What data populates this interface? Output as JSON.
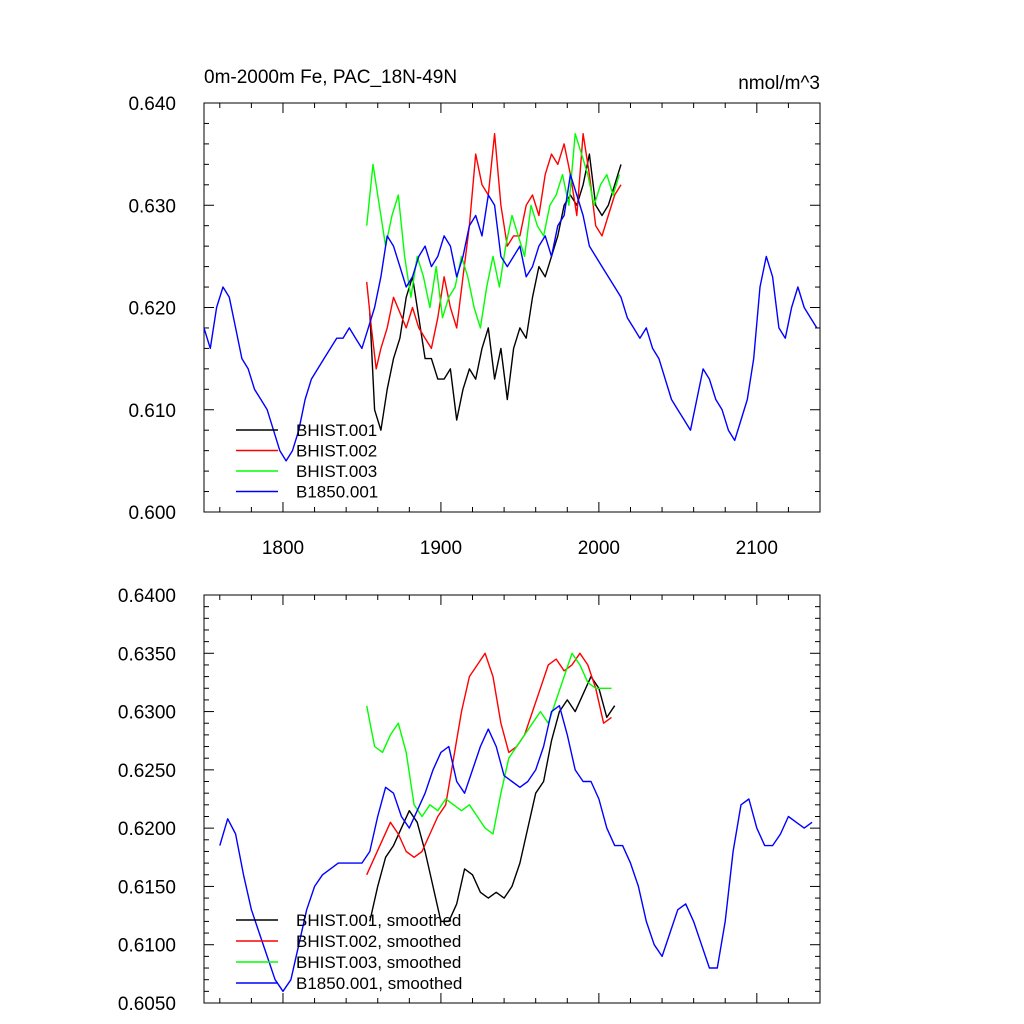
{
  "colors": {
    "black": "#000000",
    "red": "#ff0000",
    "green": "#00ff00",
    "blue": "#0000ff"
  },
  "chart_data": [
    {
      "type": "line",
      "title": "0m-2000m Fe, PAC_18N-49N",
      "units": "nmol/m^3",
      "xlim": [
        1750,
        2140
      ],
      "ylim": [
        0.6,
        0.64
      ],
      "x_ticks": [
        1800,
        1900,
        2000,
        2100
      ],
      "x_tick_labels": [
        "1800",
        "1900",
        "2000",
        "2100"
      ],
      "y_ticks": [
        0.6,
        0.61,
        0.62,
        0.63,
        0.64
      ],
      "y_tick_labels": [
        "0.600",
        "0.610",
        "0.620",
        "0.630",
        "0.640"
      ],
      "grid": false,
      "legend_position": "bottom-left",
      "series": [
        {
          "name": "BHIST.001",
          "color": "#000000",
          "x": [
            1855,
            1858,
            1862,
            1866,
            1870,
            1874,
            1878,
            1882,
            1886,
            1890,
            1894,
            1898,
            1902,
            1906,
            1910,
            1914,
            1918,
            1922,
            1926,
            1930,
            1934,
            1938,
            1942,
            1946,
            1950,
            1954,
            1958,
            1962,
            1966,
            1970,
            1974,
            1978,
            1982,
            1986,
            1990,
            1994,
            1998,
            2002,
            2006,
            2010,
            2014
          ],
          "y": [
            0.6195,
            0.61,
            0.608,
            0.612,
            0.615,
            0.617,
            0.621,
            0.623,
            0.619,
            0.615,
            0.615,
            0.613,
            0.613,
            0.614,
            0.609,
            0.612,
            0.614,
            0.613,
            0.616,
            0.618,
            0.613,
            0.616,
            0.611,
            0.616,
            0.618,
            0.617,
            0.621,
            0.624,
            0.623,
            0.625,
            0.627,
            0.63,
            0.631,
            0.63,
            0.632,
            0.635,
            0.63,
            0.629,
            0.63,
            0.632,
            0.634
          ]
        },
        {
          "name": "BHIST.002",
          "color": "#ff0000",
          "x": [
            1853,
            1856,
            1859,
            1862,
            1866,
            1870,
            1874,
            1878,
            1882,
            1886,
            1890,
            1894,
            1898,
            1902,
            1906,
            1910,
            1914,
            1918,
            1922,
            1926,
            1930,
            1934,
            1938,
            1942,
            1946,
            1950,
            1954,
            1958,
            1962,
            1966,
            1970,
            1974,
            1978,
            1982,
            1986,
            1990,
            1994,
            1998,
            2002,
            2006,
            2010,
            2014
          ],
          "y": [
            0.6225,
            0.618,
            0.614,
            0.616,
            0.618,
            0.621,
            0.6195,
            0.618,
            0.62,
            0.618,
            0.617,
            0.616,
            0.619,
            0.623,
            0.62,
            0.618,
            0.623,
            0.628,
            0.635,
            0.632,
            0.631,
            0.637,
            0.63,
            0.626,
            0.627,
            0.627,
            0.63,
            0.631,
            0.629,
            0.633,
            0.635,
            0.634,
            0.636,
            0.633,
            0.629,
            0.637,
            0.633,
            0.628,
            0.627,
            0.629,
            0.631,
            0.632
          ]
        },
        {
          "name": "BHIST.003",
          "color": "#00ff00",
          "x": [
            1853,
            1857,
            1861,
            1865,
            1869,
            1873,
            1877,
            1881,
            1885,
            1889,
            1893,
            1897,
            1901,
            1905,
            1909,
            1913,
            1917,
            1921,
            1925,
            1929,
            1933,
            1937,
            1941,
            1945,
            1949,
            1953,
            1957,
            1961,
            1965,
            1969,
            1973,
            1977,
            1981,
            1985,
            1989,
            1993,
            1997,
            2001,
            2005,
            2009,
            2013
          ],
          "y": [
            0.628,
            0.634,
            0.63,
            0.626,
            0.629,
            0.631,
            0.625,
            0.621,
            0.625,
            0.623,
            0.62,
            0.624,
            0.619,
            0.621,
            0.622,
            0.625,
            0.623,
            0.62,
            0.618,
            0.622,
            0.625,
            0.622,
            0.626,
            0.629,
            0.627,
            0.625,
            0.63,
            0.628,
            0.627,
            0.63,
            0.631,
            0.633,
            0.63,
            0.637,
            0.635,
            0.633,
            0.63,
            0.632,
            0.633,
            0.631,
            0.633
          ]
        },
        {
          "name": "B1850.001",
          "color": "#0000ff",
          "x": [
            1750,
            1754,
            1758,
            1762,
            1766,
            1770,
            1774,
            1778,
            1782,
            1786,
            1790,
            1794,
            1798,
            1802,
            1806,
            1810,
            1814,
            1818,
            1822,
            1826,
            1830,
            1834,
            1838,
            1842,
            1846,
            1850,
            1854,
            1858,
            1862,
            1866,
            1870,
            1874,
            1878,
            1882,
            1886,
            1890,
            1894,
            1898,
            1902,
            1906,
            1910,
            1914,
            1918,
            1922,
            1926,
            1930,
            1934,
            1938,
            1942,
            1946,
            1950,
            1954,
            1958,
            1962,
            1966,
            1970,
            1974,
            1978,
            1982,
            1986,
            1990,
            1994,
            1998,
            2002,
            2006,
            2010,
            2014,
            2018,
            2022,
            2026,
            2030,
            2034,
            2038,
            2042,
            2046,
            2050,
            2054,
            2058,
            2062,
            2066,
            2070,
            2074,
            2078,
            2082,
            2086,
            2090,
            2094,
            2098,
            2102,
            2106,
            2110,
            2114,
            2118,
            2122,
            2126,
            2130,
            2134,
            2138
          ],
          "y": [
            0.618,
            0.616,
            0.62,
            0.622,
            0.621,
            0.618,
            0.615,
            0.614,
            0.612,
            0.611,
            0.61,
            0.608,
            0.606,
            0.605,
            0.606,
            0.608,
            0.611,
            0.613,
            0.614,
            0.615,
            0.616,
            0.617,
            0.617,
            0.618,
            0.617,
            0.616,
            0.618,
            0.62,
            0.623,
            0.627,
            0.626,
            0.624,
            0.622,
            0.623,
            0.625,
            0.626,
            0.624,
            0.625,
            0.627,
            0.626,
            0.623,
            0.625,
            0.628,
            0.629,
            0.627,
            0.631,
            0.63,
            0.625,
            0.624,
            0.625,
            0.626,
            0.623,
            0.624,
            0.626,
            0.627,
            0.625,
            0.628,
            0.629,
            0.633,
            0.631,
            0.629,
            0.626,
            0.625,
            0.624,
            0.623,
            0.622,
            0.621,
            0.619,
            0.618,
            0.617,
            0.618,
            0.616,
            0.615,
            0.613,
            0.611,
            0.61,
            0.609,
            0.608,
            0.611,
            0.614,
            0.613,
            0.611,
            0.61,
            0.608,
            0.607,
            0.609,
            0.611,
            0.615,
            0.622,
            0.625,
            0.623,
            0.618,
            0.617,
            0.62,
            0.622,
            0.62,
            0.619,
            0.618
          ]
        }
      ]
    },
    {
      "type": "line",
      "title": "",
      "xlim": [
        1750,
        2140
      ],
      "ylim": [
        0.605,
        0.64
      ],
      "x_ticks": [
        1800,
        1900,
        2000,
        2100
      ],
      "y_ticks": [
        0.605,
        0.61,
        0.615,
        0.62,
        0.625,
        0.63,
        0.635,
        0.64
      ],
      "y_tick_labels": [
        "0.6050",
        "0.6100",
        "0.6150",
        "0.6200",
        "0.6250",
        "0.6300",
        "0.6350",
        "0.6400"
      ],
      "grid": false,
      "legend_position": "bottom-left",
      "series": [
        {
          "name": "BHIST.001, smoothed",
          "color": "#000000",
          "x": [
            1855,
            1860,
            1865,
            1870,
            1875,
            1880,
            1885,
            1890,
            1895,
            1900,
            1905,
            1910,
            1915,
            1920,
            1925,
            1930,
            1935,
            1940,
            1945,
            1950,
            1955,
            1960,
            1965,
            1970,
            1975,
            1980,
            1985,
            1990,
            1995,
            2000,
            2005,
            2010
          ],
          "y": [
            0.612,
            0.615,
            0.6175,
            0.6185,
            0.62,
            0.6215,
            0.6205,
            0.618,
            0.615,
            0.612,
            0.612,
            0.6135,
            0.6165,
            0.616,
            0.6145,
            0.614,
            0.6145,
            0.614,
            0.615,
            0.617,
            0.62,
            0.623,
            0.624,
            0.6275,
            0.63,
            0.631,
            0.63,
            0.6315,
            0.633,
            0.632,
            0.6295,
            0.6305
          ]
        },
        {
          "name": "BHIST.002, smoothed",
          "color": "#ff0000",
          "x": [
            1853,
            1858,
            1863,
            1868,
            1873,
            1878,
            1883,
            1888,
            1893,
            1898,
            1903,
            1908,
            1913,
            1918,
            1923,
            1928,
            1933,
            1938,
            1943,
            1948,
            1953,
            1958,
            1963,
            1968,
            1973,
            1978,
            1983,
            1988,
            1993,
            1998,
            2003,
            2008
          ],
          "y": [
            0.616,
            0.6175,
            0.619,
            0.6205,
            0.6195,
            0.618,
            0.6175,
            0.618,
            0.6195,
            0.621,
            0.622,
            0.626,
            0.63,
            0.633,
            0.634,
            0.635,
            0.633,
            0.629,
            0.6265,
            0.627,
            0.628,
            0.63,
            0.632,
            0.634,
            0.6345,
            0.6335,
            0.634,
            0.635,
            0.634,
            0.632,
            0.629,
            0.6295
          ]
        },
        {
          "name": "BHIST.003, smoothed",
          "color": "#00ff00",
          "x": [
            1853,
            1858,
            1863,
            1868,
            1873,
            1878,
            1883,
            1888,
            1893,
            1898,
            1903,
            1908,
            1913,
            1918,
            1923,
            1928,
            1933,
            1938,
            1943,
            1948,
            1953,
            1958,
            1963,
            1968,
            1973,
            1978,
            1983,
            1988,
            1993,
            1998,
            2003,
            2008
          ],
          "y": [
            0.6305,
            0.627,
            0.6265,
            0.628,
            0.629,
            0.6265,
            0.622,
            0.621,
            0.622,
            0.6215,
            0.6225,
            0.622,
            0.6215,
            0.622,
            0.621,
            0.62,
            0.6195,
            0.623,
            0.626,
            0.627,
            0.628,
            0.629,
            0.63,
            0.629,
            0.631,
            0.633,
            0.635,
            0.634,
            0.6325,
            0.632,
            0.632,
            0.632
          ]
        },
        {
          "name": "B1850.001, smoothed",
          "color": "#0000ff",
          "x": [
            1760,
            1765,
            1770,
            1775,
            1780,
            1785,
            1790,
            1795,
            1800,
            1805,
            1810,
            1815,
            1820,
            1825,
            1830,
            1835,
            1840,
            1845,
            1850,
            1855,
            1860,
            1865,
            1870,
            1875,
            1880,
            1885,
            1890,
            1895,
            1900,
            1905,
            1910,
            1915,
            1920,
            1925,
            1930,
            1935,
            1940,
            1945,
            1950,
            1955,
            1960,
            1965,
            1970,
            1975,
            1980,
            1985,
            1990,
            1995,
            2000,
            2005,
            2010,
            2015,
            2020,
            2025,
            2030,
            2035,
            2040,
            2045,
            2050,
            2055,
            2060,
            2065,
            2070,
            2075,
            2080,
            2085,
            2090,
            2095,
            2100,
            2105,
            2110,
            2115,
            2120,
            2125,
            2130,
            2135
          ],
          "y": [
            0.6185,
            0.6208,
            0.6195,
            0.616,
            0.613,
            0.611,
            0.609,
            0.607,
            0.606,
            0.607,
            0.61,
            0.613,
            0.615,
            0.616,
            0.6165,
            0.617,
            0.617,
            0.617,
            0.617,
            0.618,
            0.621,
            0.6235,
            0.623,
            0.621,
            0.62,
            0.6215,
            0.623,
            0.625,
            0.6265,
            0.627,
            0.624,
            0.623,
            0.625,
            0.627,
            0.6285,
            0.627,
            0.6245,
            0.624,
            0.6235,
            0.624,
            0.625,
            0.627,
            0.63,
            0.6305,
            0.628,
            0.625,
            0.624,
            0.624,
            0.6225,
            0.62,
            0.6185,
            0.6185,
            0.617,
            0.615,
            0.612,
            0.61,
            0.609,
            0.611,
            0.613,
            0.6135,
            0.612,
            0.61,
            0.608,
            0.608,
            0.612,
            0.618,
            0.622,
            0.6225,
            0.62,
            0.6185,
            0.6185,
            0.6195,
            0.621,
            0.6205,
            0.62,
            0.6205
          ]
        }
      ]
    }
  ]
}
